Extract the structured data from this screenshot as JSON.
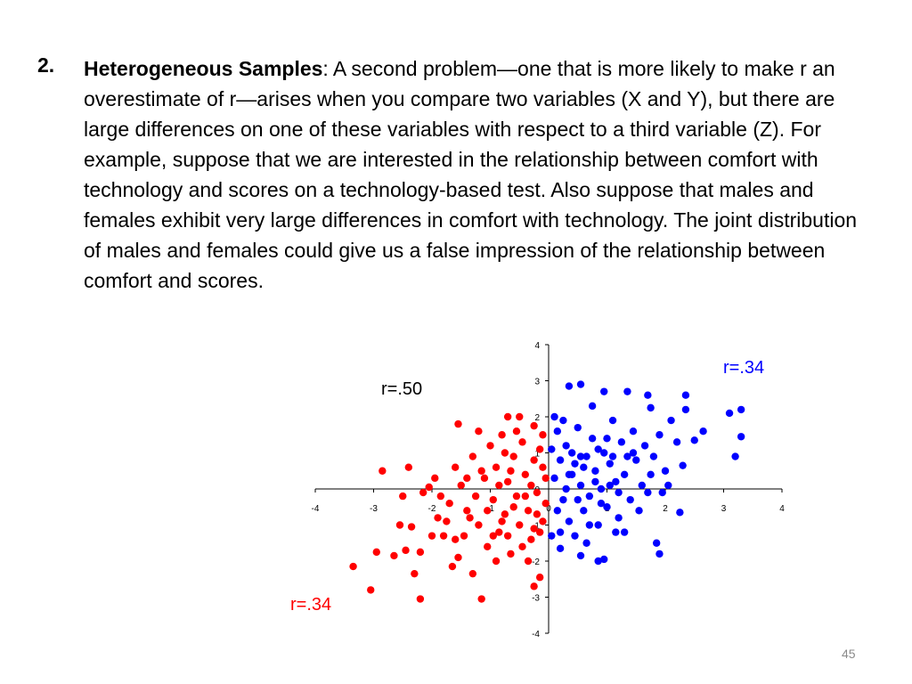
{
  "item": {
    "number": "2.",
    "heading": "Heterogeneous Samples",
    "body": ": A second problem—one that is more likely to make r an overestimate of r—arises when you compare two variables (X and Y), but there are large differences on one of these variables with respect to a third variable (Z). For example, suppose that we are interested in the relationship between comfort with technology and scores on a technology-based test. Also suppose that males and females exhibit very large differences in comfort with technology. The joint distribution of males and females could give us a false impression of the relationship between comfort and scores."
  },
  "page_number": "45",
  "chart_data": {
    "type": "scatter",
    "xlim": [
      -4,
      4
    ],
    "ylim": [
      -4,
      4
    ],
    "x_ticks": [
      "-4",
      "-3",
      "-2",
      "-1",
      "0",
      "1",
      "2",
      "3",
      "4"
    ],
    "y_ticks": [
      "4",
      "3",
      "2",
      "1",
      "0",
      "-1",
      "-2",
      "-3",
      "-4"
    ],
    "annotations": [
      {
        "text": "r=.50",
        "color": "#000000"
      },
      {
        "text": "r=.34",
        "color": "#0000ff"
      },
      {
        "text": "r=.34",
        "color": "#ff0000"
      }
    ],
    "series": [
      {
        "name": "red",
        "color": "#ff0000",
        "points": [
          [
            -2.85,
            0.5
          ],
          [
            -2.4,
            0.6
          ],
          [
            -3.35,
            -2.15
          ],
          [
            -3.05,
            -2.8
          ],
          [
            -2.2,
            -3.05
          ],
          [
            -1.15,
            -3.05
          ],
          [
            -2.95,
            -1.75
          ],
          [
            -2.65,
            -1.85
          ],
          [
            -2.5,
            -0.2
          ],
          [
            -2.45,
            -1.7
          ],
          [
            -2.3,
            -2.35
          ],
          [
            -2.2,
            -1.75
          ],
          [
            -2.15,
            -0.1
          ],
          [
            -2.05,
            0.05
          ],
          [
            -1.95,
            0.3
          ],
          [
            -1.55,
            1.8
          ],
          [
            -0.7,
            2.0
          ],
          [
            -0.5,
            2.0
          ],
          [
            -0.25,
            1.75
          ],
          [
            -0.15,
            -2.45
          ],
          [
            -0.25,
            -2.7
          ],
          [
            -1.3,
            -2.35
          ],
          [
            -1.65,
            -2.15
          ],
          [
            -2.55,
            -1.0
          ],
          [
            -2.35,
            -1.05
          ],
          [
            -1.8,
            -1.3
          ],
          [
            -1.9,
            -0.8
          ],
          [
            -1.7,
            -0.4
          ],
          [
            -1.6,
            0.6
          ],
          [
            -1.5,
            0.1
          ],
          [
            -1.4,
            -0.6
          ],
          [
            -1.3,
            0.9
          ],
          [
            -1.2,
            -1.0
          ],
          [
            -1.1,
            0.3
          ],
          [
            -1.05,
            -1.6
          ],
          [
            -1.0,
            1.2
          ],
          [
            -0.95,
            -0.3
          ],
          [
            -0.9,
            0.6
          ],
          [
            -0.85,
            -1.2
          ],
          [
            -0.8,
            1.5
          ],
          [
            -0.75,
            -0.7
          ],
          [
            -0.7,
            0.2
          ],
          [
            -0.65,
            -1.8
          ],
          [
            -0.6,
            0.9
          ],
          [
            -0.55,
            -0.2
          ],
          [
            -0.5,
            -1.0
          ],
          [
            -0.45,
            1.3
          ],
          [
            -0.4,
            0.4
          ],
          [
            -0.35,
            -0.6
          ],
          [
            -0.3,
            -1.4
          ],
          [
            -0.25,
            0.8
          ],
          [
            -0.2,
            -0.1
          ],
          [
            -0.15,
            1.1
          ],
          [
            -0.1,
            -0.9
          ],
          [
            -0.05,
            0.3
          ],
          [
            -0.05,
            -0.4
          ],
          [
            -1.75,
            -0.9
          ],
          [
            -1.45,
            -1.3
          ],
          [
            -1.25,
            -0.2
          ],
          [
            -1.15,
            0.5
          ],
          [
            -0.95,
            -1.3
          ],
          [
            -0.85,
            0.1
          ],
          [
            -0.6,
            -0.5
          ],
          [
            -0.45,
            -1.6
          ],
          [
            -0.3,
            0.1
          ],
          [
            -0.15,
            -1.2
          ],
          [
            -0.1,
            0.6
          ],
          [
            -2.0,
            -1.3
          ],
          [
            -1.85,
            -0.2
          ],
          [
            -1.55,
            -1.9
          ],
          [
            -1.35,
            -0.8
          ],
          [
            -1.2,
            1.6
          ],
          [
            -0.9,
            -2.0
          ],
          [
            -0.7,
            -1.3
          ],
          [
            -0.55,
            1.6
          ],
          [
            -0.35,
            -2.0
          ],
          [
            -0.2,
            -0.7
          ],
          [
            -0.1,
            1.5
          ],
          [
            -1.05,
            -0.6
          ],
          [
            -0.8,
            -0.9
          ],
          [
            -0.65,
            0.5
          ],
          [
            -0.4,
            -0.2
          ],
          [
            -0.25,
            -1.1
          ],
          [
            -1.6,
            -1.4
          ],
          [
            -1.4,
            0.3
          ],
          [
            -0.75,
            1.0
          ]
        ]
      },
      {
        "name": "blue",
        "color": "#0000ff",
        "points": [
          [
            0.35,
            2.85
          ],
          [
            0.55,
            2.9
          ],
          [
            0.95,
            2.7
          ],
          [
            1.35,
            2.7
          ],
          [
            1.7,
            2.6
          ],
          [
            2.35,
            2.6
          ],
          [
            3.1,
            2.1
          ],
          [
            3.3,
            2.2
          ],
          [
            3.3,
            1.45
          ],
          [
            3.2,
            0.9
          ],
          [
            1.9,
            -1.8
          ],
          [
            1.85,
            -1.5
          ],
          [
            0.85,
            -2.0
          ],
          [
            0.95,
            -1.95
          ],
          [
            0.55,
            -1.85
          ],
          [
            0.2,
            -1.65
          ],
          [
            2.25,
            -0.65
          ],
          [
            2.05,
            0.1
          ],
          [
            2.65,
            1.6
          ],
          [
            2.5,
            1.35
          ],
          [
            2.35,
            2.2
          ],
          [
            2.3,
            0.65
          ],
          [
            1.75,
            2.25
          ],
          [
            0.1,
            2.0
          ],
          [
            0.15,
            1.6
          ],
          [
            0.2,
            0.8
          ],
          [
            0.25,
            -0.3
          ],
          [
            0.3,
            1.2
          ],
          [
            0.35,
            -0.9
          ],
          [
            0.4,
            0.4
          ],
          [
            0.45,
            -1.3
          ],
          [
            0.5,
            1.7
          ],
          [
            0.55,
            0.1
          ],
          [
            0.6,
            -0.6
          ],
          [
            0.65,
            0.9
          ],
          [
            0.7,
            -0.2
          ],
          [
            0.75,
            1.4
          ],
          [
            0.8,
            0.5
          ],
          [
            0.85,
            -1.0
          ],
          [
            0.9,
            0.0
          ],
          [
            0.95,
            1.0
          ],
          [
            1.0,
            -0.5
          ],
          [
            1.05,
            0.7
          ],
          [
            1.1,
            1.9
          ],
          [
            1.15,
            0.2
          ],
          [
            1.2,
            -0.8
          ],
          [
            1.25,
            1.3
          ],
          [
            1.3,
            0.4
          ],
          [
            1.4,
            -0.3
          ],
          [
            1.45,
            1.6
          ],
          [
            1.5,
            0.8
          ],
          [
            1.6,
            0.1
          ],
          [
            1.65,
            1.2
          ],
          [
            1.7,
            -0.1
          ],
          [
            1.8,
            0.9
          ],
          [
            1.9,
            1.5
          ],
          [
            2.0,
            0.5
          ],
          [
            2.1,
            1.9
          ],
          [
            2.2,
            1.3
          ],
          [
            0.1,
            0.3
          ],
          [
            0.15,
            -0.6
          ],
          [
            0.2,
            -1.2
          ],
          [
            0.3,
            0.0
          ],
          [
            0.4,
            1.0
          ],
          [
            0.5,
            -0.3
          ],
          [
            0.6,
            0.6
          ],
          [
            0.7,
            -1.0
          ],
          [
            0.8,
            0.2
          ],
          [
            0.9,
            -0.4
          ],
          [
            1.0,
            1.4
          ],
          [
            1.1,
            0.9
          ],
          [
            1.2,
            -0.1
          ],
          [
            1.3,
            -1.2
          ],
          [
            1.35,
            0.9
          ],
          [
            1.55,
            -0.6
          ],
          [
            1.75,
            0.4
          ],
          [
            1.95,
            -0.1
          ],
          [
            0.25,
            1.9
          ],
          [
            0.45,
            0.7
          ],
          [
            0.65,
            -1.5
          ],
          [
            0.75,
            2.3
          ],
          [
            1.05,
            0.1
          ],
          [
            1.15,
            -1.2
          ],
          [
            1.45,
            1.0
          ],
          [
            0.05,
            -1.3
          ],
          [
            0.05,
            1.1
          ],
          [
            0.35,
            0.4
          ],
          [
            0.55,
            0.9
          ],
          [
            0.85,
            1.1
          ]
        ]
      }
    ]
  }
}
